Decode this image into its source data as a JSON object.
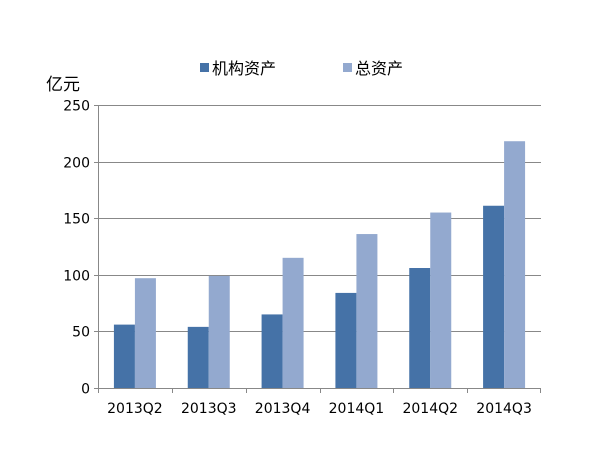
{
  "chart_data": {
    "type": "bar",
    "ylabel": "亿元",
    "categories": [
      "2013Q2",
      "2013Q3",
      "2013Q4",
      "2014Q1",
      "2014Q2",
      "2014Q3"
    ],
    "series": [
      {
        "name": "机构资产",
        "values": [
          56,
          54,
          65,
          84,
          106,
          161
        ],
        "color": "#4572A7"
      },
      {
        "name": "总资产",
        "values": [
          97,
          99,
          115,
          136,
          155,
          218
        ],
        "color": "#93A9CF"
      }
    ],
    "ylim": [
      0,
      250
    ],
    "yticks": [
      0,
      50,
      100,
      150,
      200,
      250
    ],
    "ytick_labels": [
      "0",
      "50",
      "100",
      "150",
      "200",
      "250"
    ],
    "grid": true,
    "legend_position": "top"
  }
}
